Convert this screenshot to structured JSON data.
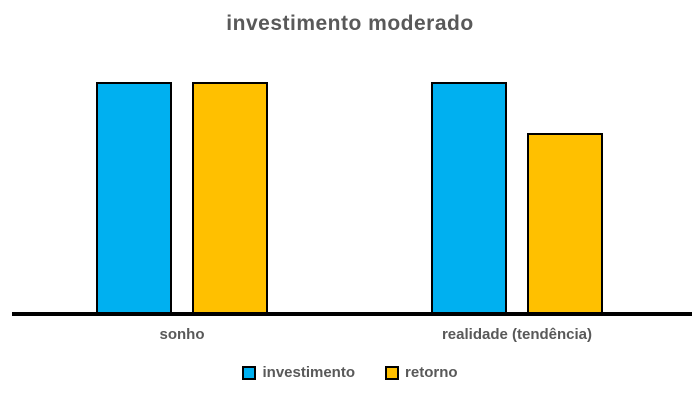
{
  "chart_data": {
    "type": "bar",
    "title": "investimento moderado",
    "categories": [
      "sonho",
      "realidade (tendência)"
    ],
    "series": [
      {
        "name": "investimento",
        "color": "#00B0F0",
        "values": [
          100,
          100
        ]
      },
      {
        "name": "retorno",
        "color": "#FFC000",
        "values": [
          100,
          78
        ]
      }
    ],
    "xlabel": "",
    "ylabel": "",
    "ylim": [
      0,
      100
    ],
    "grid": false,
    "legend_position": "bottom",
    "axis_color": "#000000",
    "text_color": "#595959",
    "bar_border_color": "#000000"
  }
}
